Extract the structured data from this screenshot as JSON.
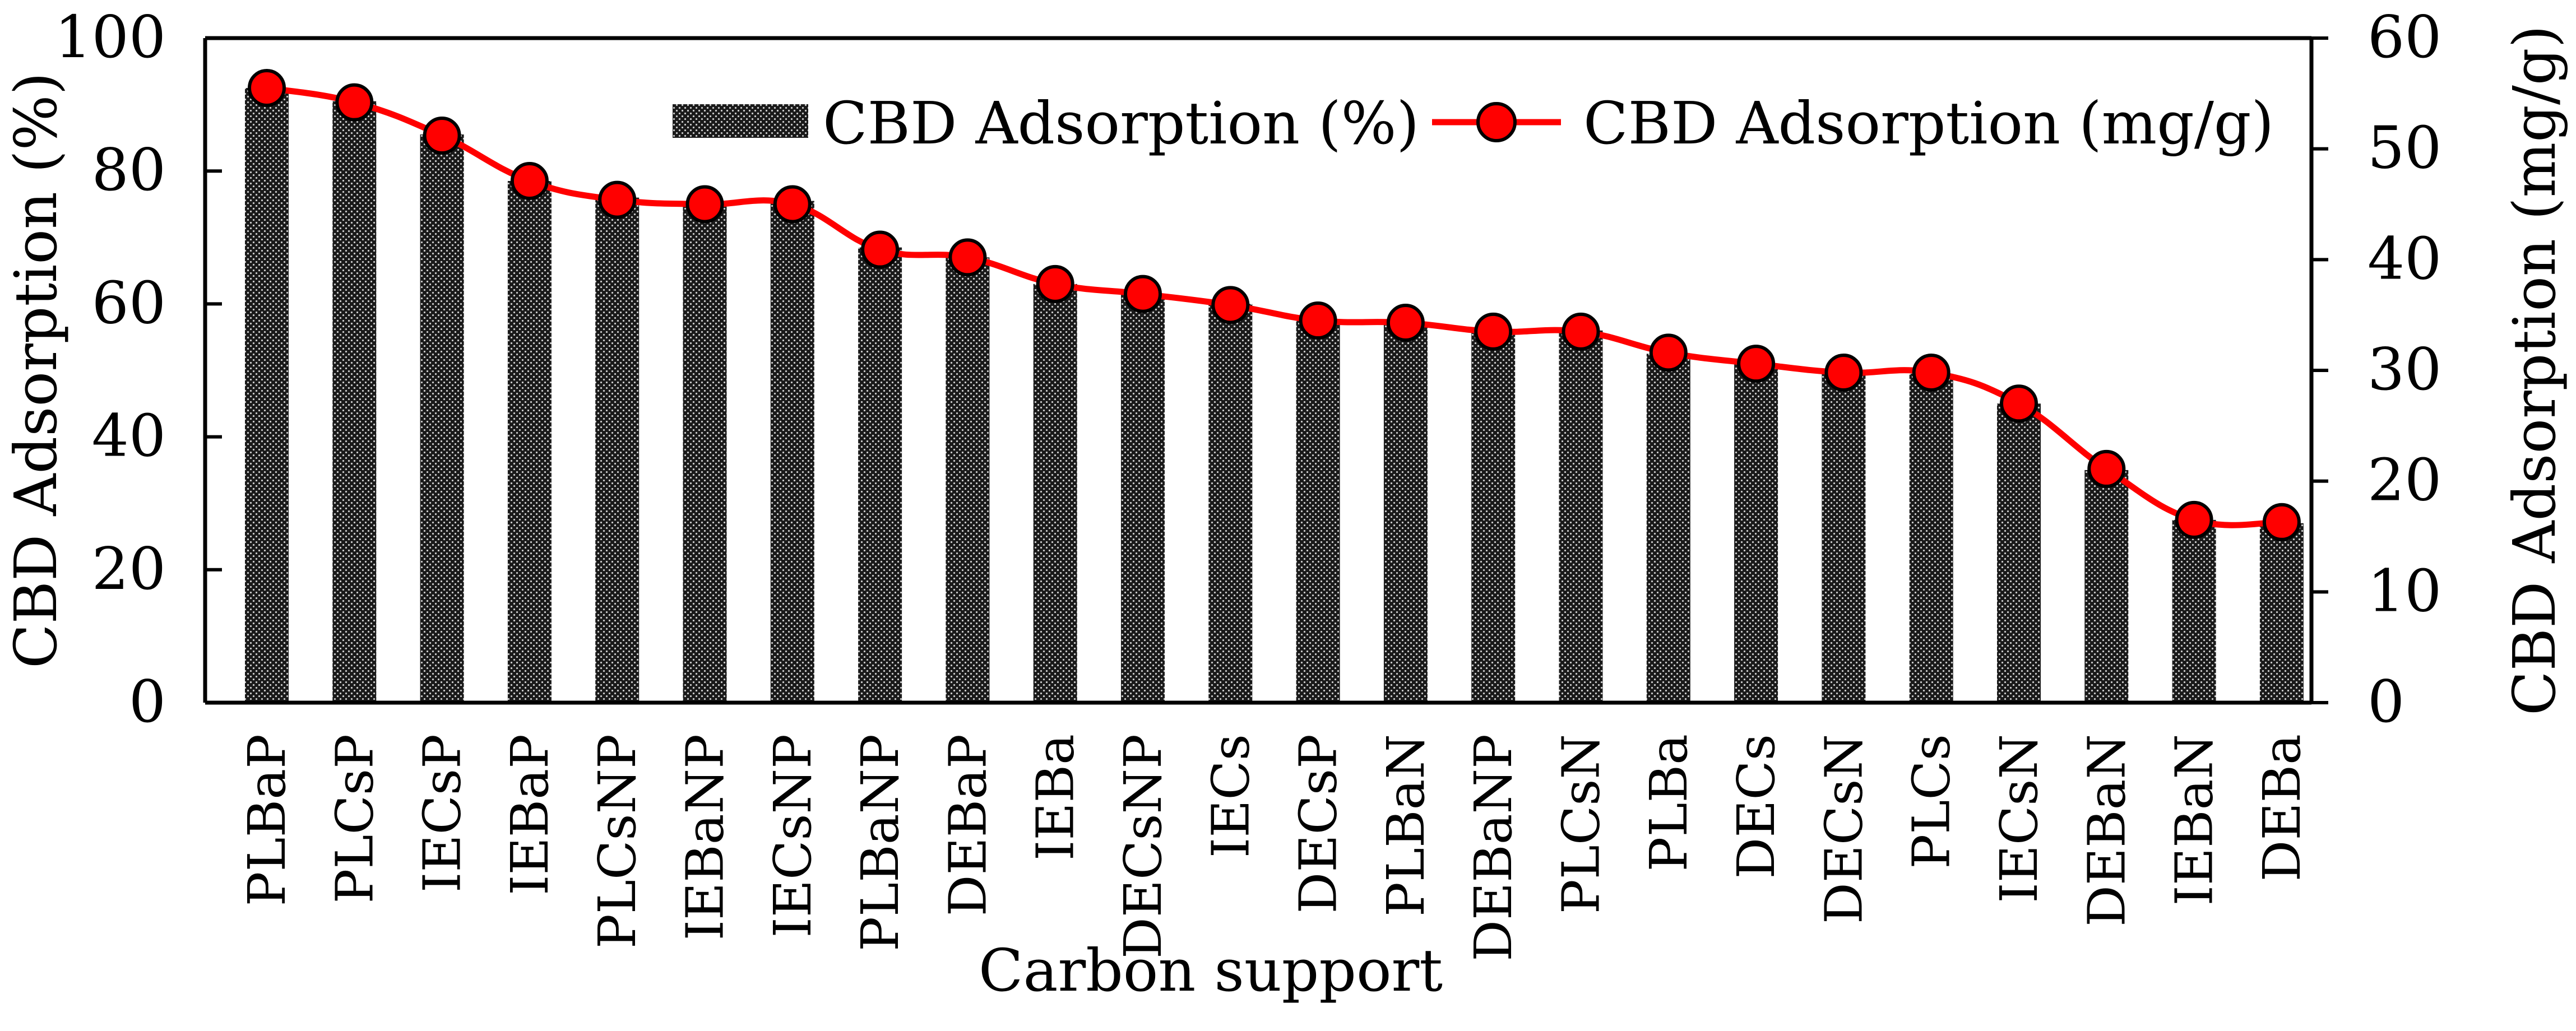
{
  "chart_data": {
    "type": "bar+line",
    "title": "",
    "xlabel": "Carbon support",
    "ylabel_left": "CBD Adsorption (%)",
    "ylabel_right": "CBD Adsorption (mg/g)",
    "ylim_left": [
      0,
      100
    ],
    "ylim_right": [
      0,
      60
    ],
    "yticks_left": [
      "0",
      "20",
      "40",
      "60",
      "80",
      "100"
    ],
    "yticks_right": [
      "0",
      "10",
      "20",
      "30",
      "40",
      "50",
      "60"
    ],
    "legend_position": "top-right",
    "grid": false,
    "categories": [
      "PLBaP",
      "PLCsP",
      "IECsP",
      "IEBaP",
      "PLCsNP",
      "IEBaNP",
      "IECsNP",
      "PLBaNP",
      "DEBaP",
      "IEBa",
      "DECsNP",
      "IECs",
      "DECsP",
      "PLBaN",
      "DEBaNP",
      "PLCsN",
      "PLBa",
      "DECs",
      "DECsN",
      "PLCs",
      "IECsN",
      "DEBaN",
      "IEBaN",
      "DEBa"
    ],
    "series": [
      {
        "name": "CBD Adsorption (%)",
        "type": "bar",
        "axis": "left",
        "color": "#1a1a1a",
        "values": [
          92.5,
          90.5,
          85.5,
          78.5,
          76.0,
          75.0,
          75.5,
          68.5,
          67.0,
          63.0,
          61.5,
          60.0,
          57.5,
          57.0,
          56.0,
          56.0,
          52.5,
          51.0,
          50.0,
          49.5,
          45.0,
          35.0,
          27.5,
          27.0
        ]
      },
      {
        "name": "CBD Adsorption (mg/g)",
        "type": "line",
        "axis": "right",
        "color": "#ff0000",
        "values": [
          55.5,
          54.2,
          51.2,
          47.1,
          45.4,
          45.0,
          45.0,
          40.9,
          40.2,
          37.8,
          36.9,
          35.9,
          34.5,
          34.3,
          33.5,
          33.5,
          31.6,
          30.6,
          29.8,
          29.8,
          27.0,
          21.1,
          16.5,
          16.3
        ]
      }
    ]
  }
}
